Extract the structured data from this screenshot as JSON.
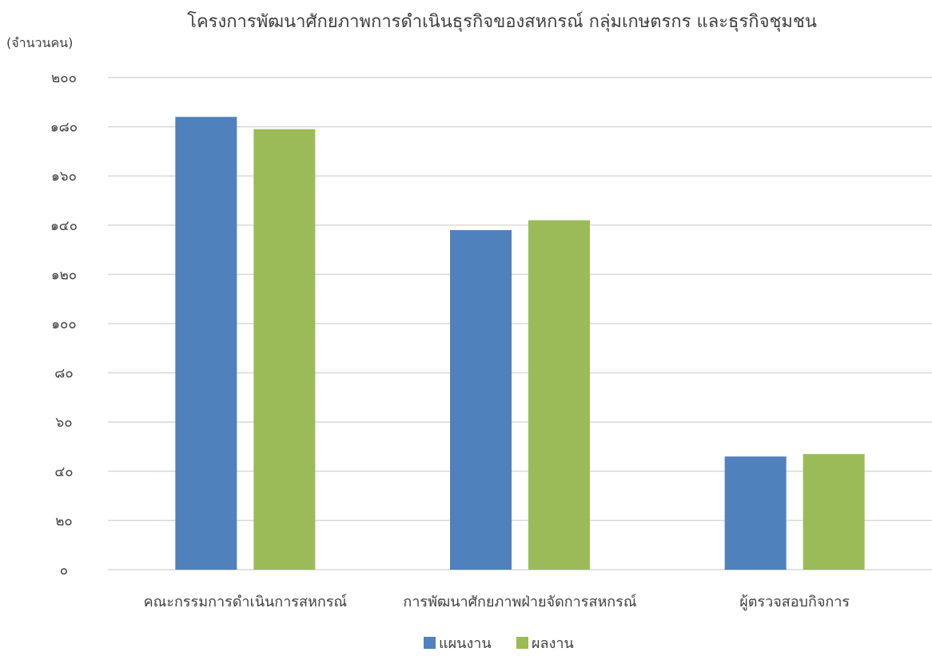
{
  "chart_data": {
    "type": "bar",
    "title": "โครงการพัฒนาศักยภาพการดำเนินธุรกิจของสหกรณ์ กลุ่มเกษตรกร และธุรกิจชุมชน",
    "ylabel": "(จำนวนคน)",
    "xlabel": "",
    "ylim": [
      0,
      200
    ],
    "yticks": [
      0,
      20,
      40,
      60,
      80,
      100,
      120,
      140,
      160,
      180,
      200
    ],
    "ytick_labels": [
      "๐",
      "๒๐",
      "๔๐",
      "๖๐",
      "๘๐",
      "๑๐๐",
      "๑๒๐",
      "๑๔๐",
      "๑๖๐",
      "๑๘๐",
      "๒๐๐"
    ],
    "categories": [
      "คณะกรรมการดำเนินการสหกรณ์",
      "การพัฒนาศักยภาพฝ่ายจัดการสหกรณ์",
      "ผู้ตรวจสอบกิจการ"
    ],
    "series": [
      {
        "name": "แผนงาน",
        "color": "#4f81bd",
        "values": [
          184,
          138,
          46
        ]
      },
      {
        "name": "ผลงาน",
        "color": "#9bbb59",
        "values": [
          179,
          142,
          47
        ]
      }
    ],
    "grid": true,
    "legend_position": "bottom-center"
  }
}
